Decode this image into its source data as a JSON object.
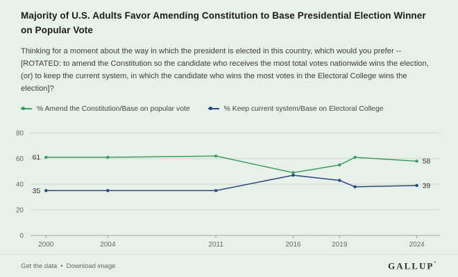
{
  "title": "Majority of U.S. Adults Favor Amending Constitution to Base Presidential Election Winner on Popular Vote",
  "question": "Thinking for a moment about the way in which the president is elected in this country, which would you prefer -- [ROTATED: to amend the Constitution so the candidate who receives the most total votes nationwide wins the election, (or) to keep the current system, in which the candidate who wins the most votes in the Electoral College wins the election]?",
  "legend": [
    {
      "label": "% Amend the Constitution/Base on popular vote",
      "color": "#3e9b63"
    },
    {
      "label": "% Keep current system/Base on Electoral College",
      "color": "#27457e"
    }
  ],
  "chart_data": {
    "type": "line",
    "x": [
      2000,
      2004,
      2011,
      2016,
      2019,
      2020,
      2024
    ],
    "series": [
      {
        "name": "% Amend the Constitution/Base on popular vote",
        "color": "#3e9b63",
        "values": [
          61,
          61,
          62,
          49,
          55,
          61,
          58
        ]
      },
      {
        "name": "% Keep current system/Base on Electoral College",
        "color": "#27457e",
        "values": [
          35,
          35,
          35,
          47,
          43,
          38,
          39
        ]
      }
    ],
    "xticks": [
      2000,
      2004,
      2011,
      2016,
      2019,
      2024
    ],
    "yticks": [
      0,
      20,
      40,
      60,
      80
    ],
    "xlim": [
      1999,
      2025.5
    ],
    "ylim": [
      0,
      80
    ],
    "grid": true,
    "legend_position": "top",
    "first_point_labels": [
      61,
      35
    ],
    "last_point_labels": [
      58,
      39
    ]
  },
  "footer": {
    "links": [
      "Get the data",
      "Download image"
    ],
    "separator": "•",
    "brand": "GALLUP",
    "brand_mark": "’"
  }
}
